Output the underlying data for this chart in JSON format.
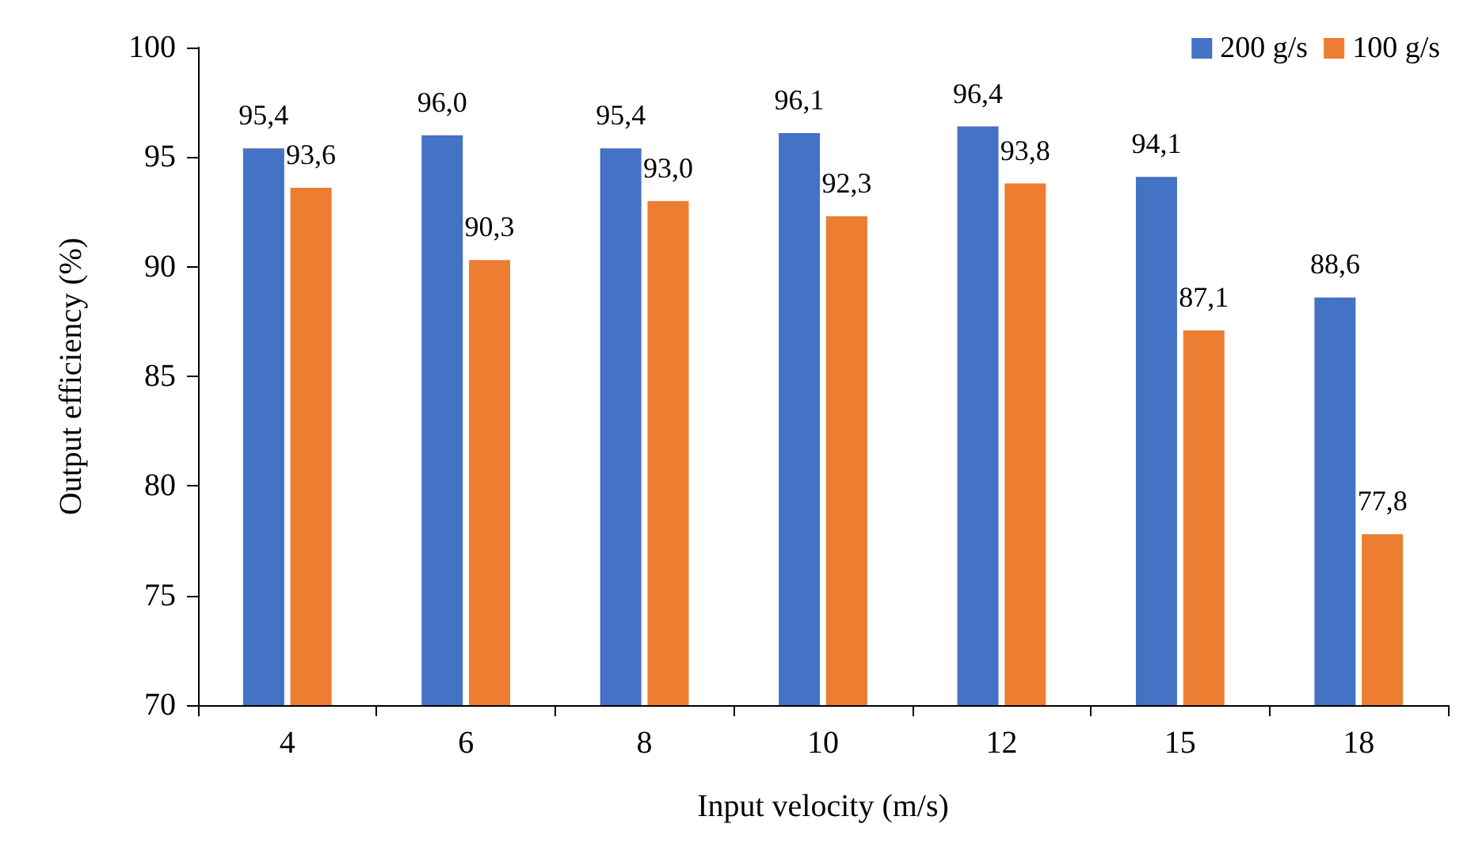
{
  "chart_data": {
    "type": "bar",
    "xlabel": "Input velocity (m/s)",
    "ylabel": "Output efficiency (%)",
    "categories": [
      "4",
      "6",
      "8",
      "10",
      "12",
      "15",
      "18"
    ],
    "series": [
      {
        "name": "200 g/s",
        "color": "#4472c4",
        "values": [
          95.4,
          96.0,
          95.4,
          96.1,
          96.4,
          94.1,
          88.6
        ],
        "value_labels": [
          "95,4",
          "96,0",
          "95,4",
          "96,1",
          "96,4",
          "94,1",
          "88,6"
        ]
      },
      {
        "name": "100 g/s",
        "color": "#ed7d31",
        "values": [
          93.6,
          90.3,
          93.0,
          92.3,
          93.8,
          87.1,
          77.8
        ],
        "value_labels": [
          "93,6",
          "90,3",
          "93,0",
          "92,3",
          "93,8",
          "87,1",
          "77,8"
        ]
      }
    ],
    "ylim": [
      70,
      100
    ],
    "yticks": [
      70,
      75,
      80,
      85,
      90,
      95,
      100
    ],
    "grid": false,
    "legend": "top right"
  }
}
